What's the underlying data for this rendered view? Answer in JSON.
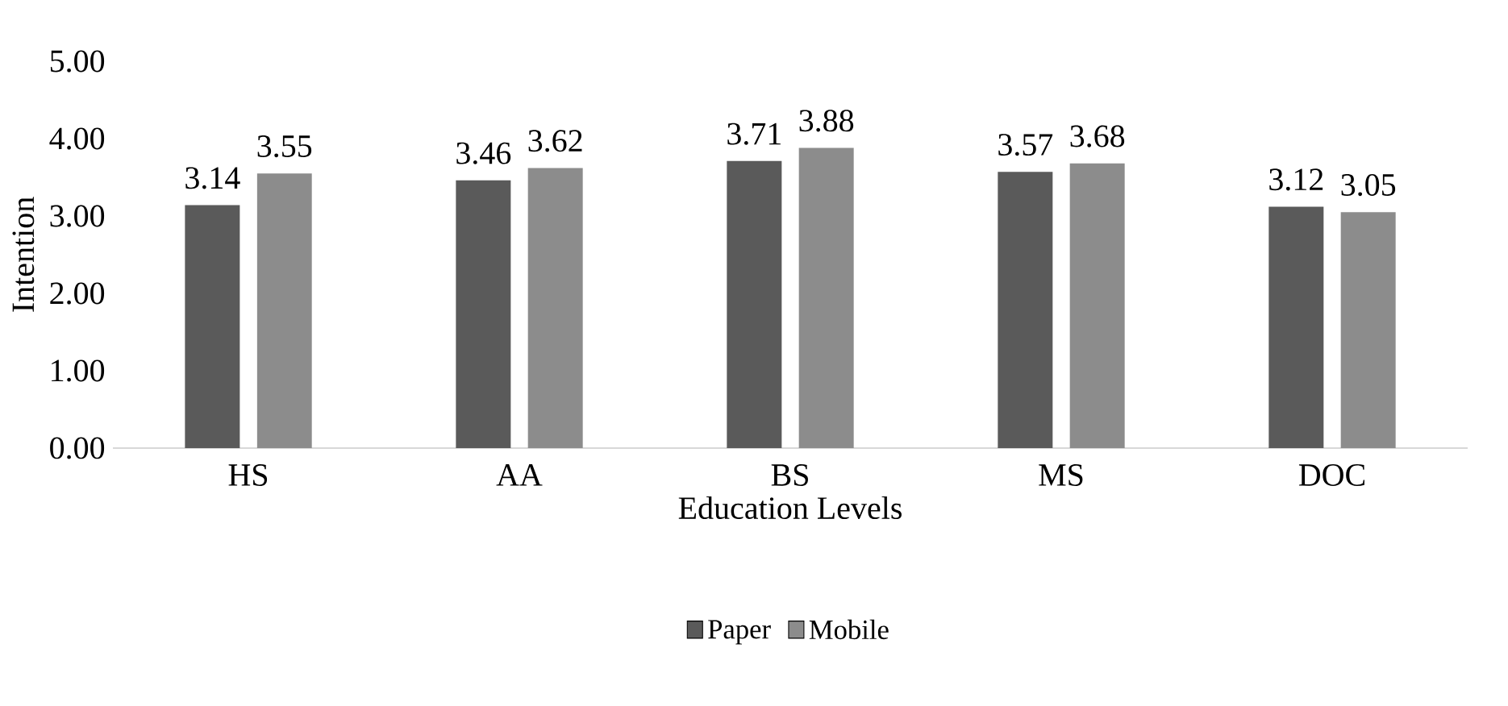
{
  "chart_data": {
    "type": "bar",
    "xlabel": "Education Levels",
    "ylabel": "Intention",
    "categories": [
      "HS",
      "AA",
      "BS",
      "MS",
      "DOC"
    ],
    "series": [
      {
        "name": "Paper",
        "color": "#5a5a5a",
        "values": [
          3.14,
          3.46,
          3.71,
          3.57,
          3.12
        ],
        "value_labels": [
          "3.14",
          "3.46",
          "3.71",
          "3.57",
          "3.12"
        ]
      },
      {
        "name": "Mobile",
        "color": "#8c8c8c",
        "values": [
          3.55,
          3.62,
          3.88,
          3.68,
          3.05
        ],
        "value_labels": [
          "3.55",
          "3.62",
          "3.88",
          "3.68",
          "3.05"
        ]
      }
    ],
    "ylim": [
      0,
      5
    ],
    "yticks": [
      {
        "value": 0,
        "label": "0.00"
      },
      {
        "value": 1,
        "label": "1.00"
      },
      {
        "value": 2,
        "label": "2.00"
      },
      {
        "value": 3,
        "label": "3.00"
      },
      {
        "value": 4,
        "label": "4.00"
      },
      {
        "value": 5,
        "label": "5.00"
      }
    ],
    "grid": false,
    "legend": "bottom"
  }
}
